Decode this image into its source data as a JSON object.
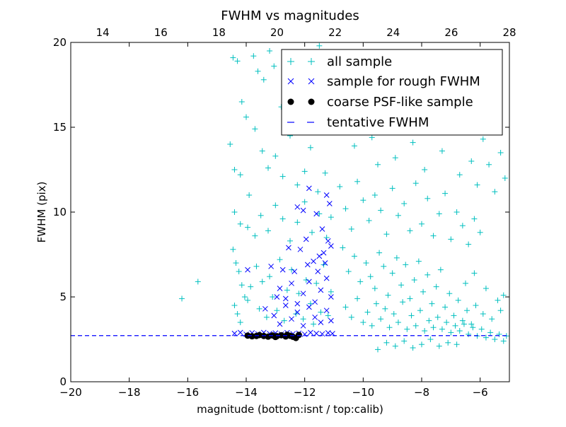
{
  "chart_data": {
    "type": "scatter",
    "title": "FWHM vs magnitudes",
    "xlabel": "magnitude (bottom:isnt / top:calib)",
    "ylabel": "FWHM (pix)",
    "xlim": [
      -20,
      -5
    ],
    "ylim": [
      0,
      20
    ],
    "x_ticks": [
      "−20",
      "−18",
      "−16",
      "−14",
      "−12",
      "−10",
      "−8",
      "−6"
    ],
    "x_tick_values": [
      -20,
      -18,
      -16,
      -14,
      -12,
      -10,
      -8,
      -6
    ],
    "y_ticks": [
      "0",
      "5",
      "10",
      "15",
      "20"
    ],
    "y_tick_values": [
      0,
      5,
      10,
      15,
      20
    ],
    "top_axis": {
      "xlim": [
        12.9,
        28
      ],
      "ticks": [
        "14",
        "16",
        "18",
        "20",
        "22",
        "24",
        "26",
        "28"
      ],
      "tick_values": [
        14,
        16,
        18,
        20,
        22,
        24,
        26,
        28
      ]
    },
    "grid": false,
    "legend_position": "top-right",
    "series": [
      {
        "name": "all sample",
        "marker": "+",
        "color": "#00bfbf",
        "points": [
          [
            -14.45,
            19.1
          ],
          [
            -14.3,
            18.9
          ],
          [
            -14.15,
            16.5
          ],
          [
            -14.0,
            15.6
          ],
          [
            -13.75,
            19.2
          ],
          [
            -13.6,
            18.3
          ],
          [
            -13.4,
            17.8
          ],
          [
            -13.2,
            19.5
          ],
          [
            -13.05,
            18.6
          ],
          [
            -12.8,
            16.2
          ],
          [
            -12.4,
            17.0
          ],
          [
            -12.1,
            18.2
          ],
          [
            -11.8,
            16.0
          ],
          [
            -11.5,
            19.8
          ],
          [
            -11.2,
            17.5
          ],
          [
            -14.55,
            14.0
          ],
          [
            -14.4,
            12.5
          ],
          [
            -14.2,
            12.2
          ],
          [
            -13.9,
            11.0
          ],
          [
            -13.7,
            14.9
          ],
          [
            -13.45,
            13.6
          ],
          [
            -13.25,
            12.6
          ],
          [
            -13.0,
            13.3
          ],
          [
            -12.75,
            12.1
          ],
          [
            -12.5,
            14.5
          ],
          [
            -12.25,
            11.6
          ],
          [
            -12.0,
            12.4
          ],
          [
            -11.8,
            13.8
          ],
          [
            -11.55,
            11.2
          ],
          [
            -11.3,
            12.3
          ],
          [
            -14.4,
            10.0
          ],
          [
            -14.2,
            9.3
          ],
          [
            -13.95,
            9.1
          ],
          [
            -13.7,
            8.6
          ],
          [
            -13.5,
            9.8
          ],
          [
            -13.25,
            8.9
          ],
          [
            -13.0,
            10.4
          ],
          [
            -12.75,
            9.6
          ],
          [
            -12.5,
            8.3
          ],
          [
            -12.25,
            9.4
          ],
          [
            -12.0,
            10.6
          ],
          [
            -11.75,
            8.8
          ],
          [
            -11.5,
            9.9
          ],
          [
            -11.25,
            8.5
          ],
          [
            -11.1,
            9.7
          ],
          [
            -14.45,
            7.8
          ],
          [
            -14.35,
            7.0
          ],
          [
            -14.25,
            6.5
          ],
          [
            -14.15,
            5.7
          ],
          [
            -14.05,
            5.0
          ],
          [
            -14.4,
            4.5
          ],
          [
            -14.3,
            4.0
          ],
          [
            -14.2,
            3.5
          ],
          [
            -13.95,
            4.8
          ],
          [
            -13.85,
            5.6
          ],
          [
            -13.65,
            6.8
          ],
          [
            -13.55,
            4.3
          ],
          [
            -13.45,
            5.9
          ],
          [
            -13.3,
            3.8
          ],
          [
            -13.2,
            6.2
          ],
          [
            -13.1,
            5.0
          ],
          [
            -12.95,
            4.2
          ],
          [
            -12.85,
            7.2
          ],
          [
            -12.7,
            3.6
          ],
          [
            -12.6,
            5.4
          ],
          [
            -12.45,
            6.6
          ],
          [
            -12.3,
            4.0
          ],
          [
            -12.2,
            5.2
          ],
          [
            -12.05,
            3.7
          ],
          [
            -11.95,
            6.0
          ],
          [
            -11.8,
            4.6
          ],
          [
            -11.7,
            3.4
          ],
          [
            -11.6,
            5.8
          ],
          [
            -11.45,
            4.1
          ],
          [
            -11.35,
            6.9
          ],
          [
            -11.2,
            3.9
          ],
          [
            -11.1,
            5.3
          ],
          [
            -15.65,
            5.9
          ],
          [
            -16.2,
            4.9
          ],
          [
            -10.9,
            17.2
          ],
          [
            -10.7,
            15.0
          ],
          [
            -10.5,
            19.3
          ],
          [
            -10.3,
            13.9
          ],
          [
            -10.1,
            16.6
          ],
          [
            -9.9,
            18.5
          ],
          [
            -9.7,
            14.4
          ],
          [
            -9.5,
            12.8
          ],
          [
            -9.3,
            17.9
          ],
          [
            -9.1,
            15.6
          ],
          [
            -8.9,
            13.2
          ],
          [
            -8.7,
            19.0
          ],
          [
            -8.5,
            16.3
          ],
          [
            -8.3,
            14.1
          ],
          [
            -8.1,
            18.0
          ],
          [
            -7.9,
            12.5
          ],
          [
            -7.7,
            15.3
          ],
          [
            -7.5,
            17.4
          ],
          [
            -7.3,
            13.6
          ],
          [
            -7.1,
            16.1
          ],
          [
            -6.9,
            14.7
          ],
          [
            -6.7,
            12.2
          ],
          [
            -6.5,
            15.8
          ],
          [
            -6.3,
            13.0
          ],
          [
            -6.1,
            11.6
          ],
          [
            -5.9,
            14.3
          ],
          [
            -5.7,
            12.8
          ],
          [
            -5.5,
            11.2
          ],
          [
            -5.3,
            13.5
          ],
          [
            -5.15,
            12.0
          ],
          [
            -10.8,
            11.5
          ],
          [
            -10.6,
            10.2
          ],
          [
            -10.4,
            9.0
          ],
          [
            -10.2,
            11.8
          ],
          [
            -10.0,
            10.7
          ],
          [
            -9.8,
            9.5
          ],
          [
            -9.6,
            11.0
          ],
          [
            -9.4,
            10.1
          ],
          [
            -9.2,
            8.7
          ],
          [
            -9.0,
            11.4
          ],
          [
            -8.8,
            9.8
          ],
          [
            -8.6,
            10.5
          ],
          [
            -8.4,
            8.9
          ],
          [
            -8.2,
            11.7
          ],
          [
            -8.0,
            9.3
          ],
          [
            -7.8,
            10.8
          ],
          [
            -7.6,
            8.6
          ],
          [
            -7.4,
            9.9
          ],
          [
            -7.2,
            11.1
          ],
          [
            -7.0,
            8.4
          ],
          [
            -6.8,
            10.0
          ],
          [
            -6.6,
            9.2
          ],
          [
            -6.4,
            8.1
          ],
          [
            -6.2,
            9.6
          ],
          [
            -6.0,
            8.8
          ],
          [
            -10.7,
            7.9
          ],
          [
            -10.5,
            6.5
          ],
          [
            -10.3,
            7.4
          ],
          [
            -10.1,
            5.9
          ],
          [
            -9.9,
            7.0
          ],
          [
            -9.75,
            6.2
          ],
          [
            -9.6,
            5.5
          ],
          [
            -9.45,
            7.6
          ],
          [
            -9.3,
            6.8
          ],
          [
            -9.15,
            5.1
          ],
          [
            -9.0,
            6.4
          ],
          [
            -8.85,
            7.3
          ],
          [
            -8.7,
            5.7
          ],
          [
            -8.55,
            6.9
          ],
          [
            -8.4,
            4.9
          ],
          [
            -8.25,
            6.0
          ],
          [
            -8.1,
            7.1
          ],
          [
            -7.95,
            5.3
          ],
          [
            -7.8,
            6.3
          ],
          [
            -7.65,
            4.6
          ],
          [
            -7.5,
            5.6
          ],
          [
            -7.35,
            6.6
          ],
          [
            -7.2,
            4.4
          ],
          [
            -7.05,
            5.2
          ],
          [
            -6.9,
            3.9
          ],
          [
            -6.75,
            4.8
          ],
          [
            -6.6,
            3.6
          ],
          [
            -6.45,
            4.2
          ],
          [
            -6.3,
            3.4
          ],
          [
            -6.15,
            4.5
          ],
          [
            -10.6,
            4.4
          ],
          [
            -10.4,
            3.8
          ],
          [
            -10.2,
            4.9
          ],
          [
            -10.0,
            3.5
          ],
          [
            -9.85,
            4.1
          ],
          [
            -9.7,
            3.3
          ],
          [
            -9.55,
            4.6
          ],
          [
            -9.4,
            3.7
          ],
          [
            -9.25,
            4.3
          ],
          [
            -9.1,
            3.2
          ],
          [
            -8.95,
            4.0
          ],
          [
            -8.8,
            3.5
          ],
          [
            -8.65,
            4.7
          ],
          [
            -8.5,
            3.1
          ],
          [
            -8.35,
            3.9
          ],
          [
            -8.2,
            3.3
          ],
          [
            -8.05,
            4.2
          ],
          [
            -7.9,
            3.0
          ],
          [
            -7.75,
            3.6
          ],
          [
            -7.6,
            3.2
          ],
          [
            -7.45,
            3.8
          ],
          [
            -7.3,
            3.1
          ],
          [
            -7.15,
            3.5
          ],
          [
            -7.0,
            2.9
          ],
          [
            -6.85,
            3.3
          ],
          [
            -6.7,
            3.0
          ],
          [
            -6.55,
            3.4
          ],
          [
            -6.4,
            2.8
          ],
          [
            -6.25,
            3.2
          ],
          [
            -6.1,
            2.7
          ],
          [
            -5.95,
            3.1
          ],
          [
            -5.8,
            2.6
          ],
          [
            -5.65,
            2.9
          ],
          [
            -5.5,
            2.5
          ],
          [
            -5.35,
            2.8
          ],
          [
            -5.2,
            2.4
          ],
          [
            -5.1,
            2.7
          ],
          [
            -5.9,
            4.0
          ],
          [
            -5.6,
            3.7
          ],
          [
            -5.3,
            4.2
          ],
          [
            -9.2,
            2.3
          ],
          [
            -8.9,
            2.1
          ],
          [
            -8.6,
            2.4
          ],
          [
            -8.3,
            2.0
          ],
          [
            -8.0,
            2.2
          ],
          [
            -7.7,
            2.5
          ],
          [
            -7.4,
            2.1
          ],
          [
            -9.5,
            1.9
          ],
          [
            -7.1,
            2.3
          ],
          [
            -6.8,
            2.2
          ],
          [
            -6.5,
            5.8
          ],
          [
            -6.2,
            6.4
          ],
          [
            -5.8,
            5.5
          ],
          [
            -5.4,
            4.8
          ],
          [
            -5.2,
            5.1
          ]
        ]
      },
      {
        "name": "sample for rough FWHM",
        "marker": "x",
        "color": "#0000ff",
        "points": [
          [
            -14.4,
            2.85
          ],
          [
            -14.2,
            2.9
          ],
          [
            -14.0,
            2.8
          ],
          [
            -13.8,
            2.88
          ],
          [
            -13.6,
            2.82
          ],
          [
            -13.4,
            2.9
          ],
          [
            -13.2,
            2.84
          ],
          [
            -13.0,
            2.87
          ],
          [
            -12.8,
            2.81
          ],
          [
            -12.6,
            2.89
          ],
          [
            -12.4,
            2.83
          ],
          [
            -12.2,
            2.86
          ],
          [
            -12.0,
            2.8
          ],
          [
            -11.8,
            2.9
          ],
          [
            -11.6,
            2.85
          ],
          [
            -11.4,
            2.82
          ],
          [
            -11.2,
            2.88
          ],
          [
            -11.05,
            2.84
          ],
          [
            -13.95,
            6.6
          ],
          [
            -13.15,
            6.8
          ],
          [
            -12.75,
            6.6
          ],
          [
            -12.55,
            7.9
          ],
          [
            -12.35,
            6.5
          ],
          [
            -12.15,
            7.8
          ],
          [
            -11.9,
            6.9
          ],
          [
            -11.7,
            7.1
          ],
          [
            -11.5,
            7.4
          ],
          [
            -11.3,
            7.0
          ],
          [
            -11.2,
            8.3
          ],
          [
            -11.15,
            10.5
          ],
          [
            -11.25,
            11.0
          ],
          [
            -11.4,
            9.0
          ],
          [
            -11.6,
            9.9
          ],
          [
            -12.05,
            10.1
          ],
          [
            -12.25,
            10.3
          ],
          [
            -11.85,
            11.4
          ],
          [
            -11.1,
            8.0
          ],
          [
            -11.95,
            8.4
          ],
          [
            -12.85,
            5.5
          ],
          [
            -12.65,
            4.9
          ],
          [
            -12.45,
            5.8
          ],
          [
            -12.25,
            4.6
          ],
          [
            -12.05,
            5.2
          ],
          [
            -11.85,
            5.9
          ],
          [
            -11.65,
            4.7
          ],
          [
            -11.45,
            5.4
          ],
          [
            -11.25,
            6.1
          ],
          [
            -11.1,
            5.0
          ],
          [
            -13.35,
            4.3
          ],
          [
            -13.05,
            3.9
          ],
          [
            -12.85,
            3.4
          ],
          [
            -12.65,
            4.5
          ],
          [
            -12.45,
            3.7
          ],
          [
            -12.25,
            4.1
          ],
          [
            -12.05,
            3.3
          ],
          [
            -11.85,
            4.4
          ],
          [
            -11.65,
            3.8
          ],
          [
            -11.45,
            3.5
          ],
          [
            -11.25,
            4.2
          ],
          [
            -11.1,
            3.6
          ],
          [
            -12.95,
            5.0
          ],
          [
            -11.55,
            6.5
          ],
          [
            -11.35,
            7.6
          ]
        ]
      },
      {
        "name": "coarse PSF-like sample",
        "marker": "o",
        "color": "#000000",
        "points": [
          [
            -13.95,
            2.72
          ],
          [
            -13.8,
            2.68
          ],
          [
            -13.55,
            2.75
          ],
          [
            -13.4,
            2.7
          ],
          [
            -13.25,
            2.66
          ],
          [
            -13.1,
            2.73
          ],
          [
            -12.95,
            2.69
          ],
          [
            -12.8,
            2.74
          ],
          [
            -12.65,
            2.67
          ],
          [
            -12.5,
            2.71
          ],
          [
            -12.4,
            2.65
          ],
          [
            -12.3,
            2.58
          ],
          [
            -12.2,
            2.76
          ],
          [
            -13.65,
            2.7
          ],
          [
            -13.0,
            2.64
          ],
          [
            -12.6,
            2.77
          ]
        ]
      },
      {
        "name": "tentative FWHM",
        "line": "dashed",
        "color": "#0000ff",
        "value": 2.72
      }
    ]
  }
}
